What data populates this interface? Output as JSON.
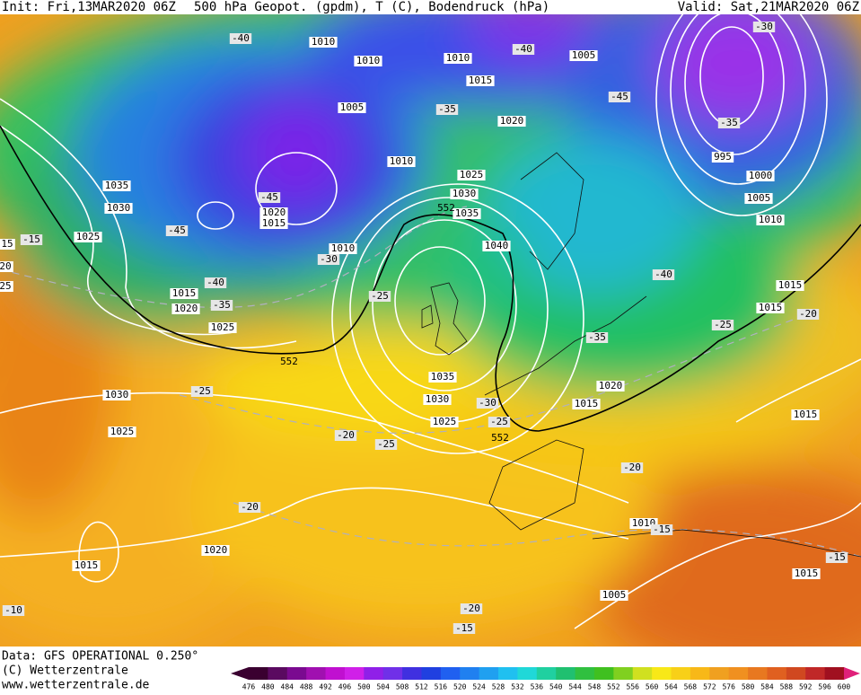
{
  "header": {
    "init": "Init: Fri,13MAR2020 06Z",
    "title": "500 hPa Geopot. (gpdm), T (C), Bodendruck (hPa)",
    "valid": "Valid: Sat,21MAR2020 06Z"
  },
  "map": {
    "pressure_labels": [
      "1010",
      "1010",
      "1010",
      "1005",
      "1015",
      "1005",
      "1020",
      "1010",
      "1025",
      "1030",
      "1035",
      "1035",
      "1030",
      "1025",
      "1020",
      "1015",
      "1040",
      "1010",
      "1015",
      "1020",
      "1025",
      "995",
      "1000",
      "1005",
      "1010",
      "1015",
      "1015",
      "1035",
      "1030",
      "1025",
      "1020",
      "1015",
      "1030",
      "1025",
      "1015",
      "1020",
      "1015",
      "1010",
      "1015",
      "1005",
      "15",
      "20",
      "25"
    ],
    "temperature_labels": [
      "-40",
      "-40",
      "-30",
      "-35",
      "-45",
      "-35",
      "-45",
      "-45",
      "-15",
      "-30",
      "-40",
      "-35",
      "-25",
      "-40",
      "-25",
      "-20",
      "-35",
      "-25",
      "-30",
      "-25",
      "-20",
      "-25",
      "-20",
      "-20",
      "-15",
      "-15",
      "-20",
      "-15",
      "-10"
    ],
    "geopotential_labels": [
      "552",
      "552",
      "552"
    ]
  },
  "footer": {
    "data": "Data: GFS OPERATIONAL 0.250°",
    "copyright": "(C) Wetterzentrale",
    "url": "www.wetterzentrale.de"
  },
  "legend": {
    "ticks": [
      "476",
      "480",
      "484",
      "488",
      "492",
      "496",
      "500",
      "504",
      "508",
      "512",
      "516",
      "520",
      "524",
      "528",
      "532",
      "536",
      "540",
      "544",
      "548",
      "552",
      "556",
      "560",
      "564",
      "568",
      "572",
      "576",
      "580",
      "584",
      "588",
      "592",
      "596",
      "600"
    ]
  }
}
